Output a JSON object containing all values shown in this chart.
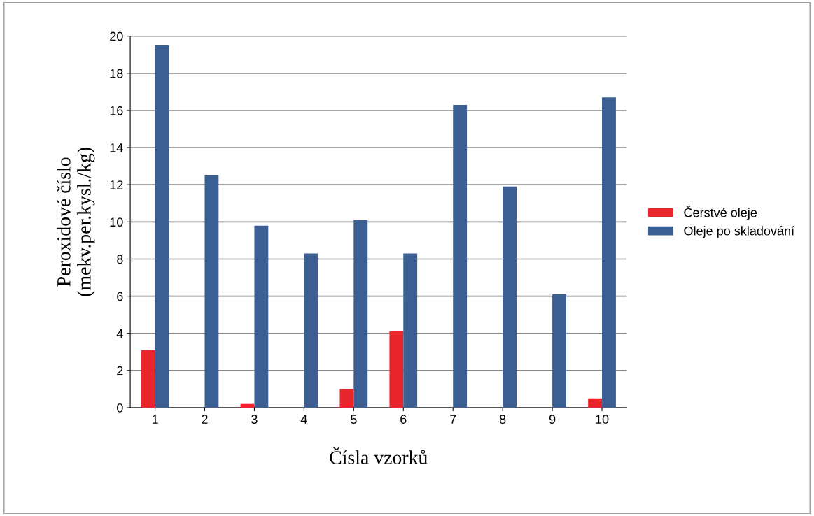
{
  "chart_data": {
    "type": "bar",
    "xlabel": "Čísla vzorků",
    "ylabel": "Peroxidové číslo\n(mekv.per.kysl./kg)",
    "categories": [
      "1",
      "2",
      "3",
      "4",
      "5",
      "6",
      "7",
      "8",
      "9",
      "10"
    ],
    "series": [
      {
        "name": "Čerstvé oleje",
        "color": "#e8262b",
        "values": [
          3.1,
          0,
          0.2,
          0,
          1.0,
          4.1,
          0,
          0,
          0,
          0.5
        ]
      },
      {
        "name": "Oleje po skladování",
        "color": "#3b5f92",
        "values": [
          19.5,
          12.5,
          9.8,
          8.3,
          10.1,
          8.3,
          16.3,
          11.9,
          6.1,
          16.7
        ]
      }
    ],
    "ylim": [
      0,
      20
    ],
    "yticks": [
      0,
      2,
      4,
      6,
      8,
      10,
      12,
      14,
      16,
      18,
      20
    ],
    "grid": "y",
    "legend": "right"
  }
}
